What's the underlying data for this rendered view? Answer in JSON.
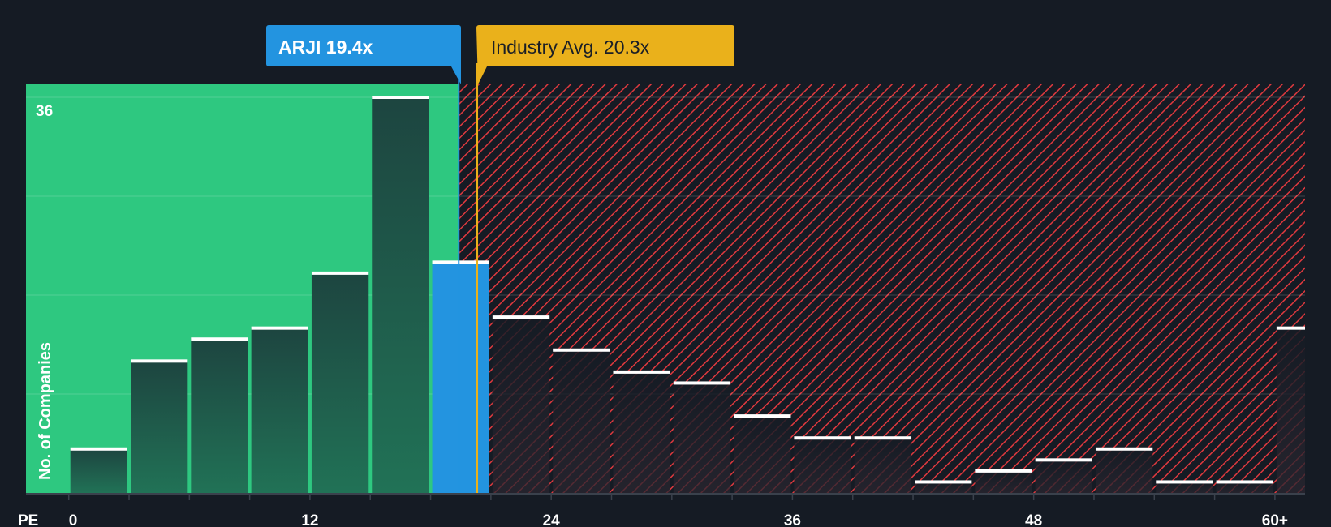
{
  "chart_data": {
    "type": "bar",
    "title": "",
    "xlabel": "PE",
    "ylabel": "No. of Companies",
    "bin_width": 3,
    "bins_start": [
      0,
      3,
      6,
      9,
      12,
      15,
      18,
      21,
      24,
      27,
      30,
      33,
      36,
      39,
      42,
      45,
      48,
      51,
      54,
      57,
      60
    ],
    "values": [
      4,
      12,
      14,
      15,
      20,
      36,
      21,
      16,
      13,
      11,
      10,
      7,
      5,
      5,
      1,
      2,
      3,
      4,
      1,
      1,
      15
    ],
    "highlight_bin_index": 6,
    "x_ticks": [
      {
        "value": 0,
        "label": "0"
      },
      {
        "value": 12,
        "label": "12"
      },
      {
        "value": 24,
        "label": "24"
      },
      {
        "value": 36,
        "label": "36"
      },
      {
        "value": 48,
        "label": "48"
      },
      {
        "value": 60,
        "label": "60+"
      }
    ],
    "y_ticks": [
      {
        "value": 36,
        "label": "36"
      }
    ],
    "y_gridlines": [
      9,
      18,
      27,
      36
    ],
    "ylim": [
      0,
      36
    ],
    "xlim": [
      0,
      62.5
    ],
    "company": {
      "label": "ARJI 19.4x",
      "value": 19.4
    },
    "industry": {
      "label": "Industry Avg. 20.3x",
      "value": 20.3
    },
    "colors": {
      "background": "#151b24",
      "undervalued_zone": "#2ec880",
      "overvalued_hatch": "#e0393e",
      "company": "#2394e0",
      "industry": "#eab11b",
      "bar_top": "#ffffff"
    }
  }
}
